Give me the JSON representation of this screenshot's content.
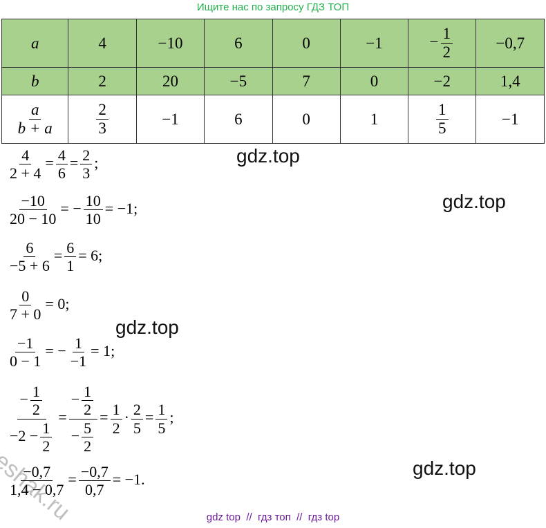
{
  "header": "Ищите нас по запросу ГДЗ ТОП",
  "table": {
    "rows": [
      [
        "a",
        "4",
        "−10",
        "6",
        "0",
        "−1",
        [
          "−",
          {
            "num": "1",
            "den": "2"
          }
        ],
        "−0,7"
      ],
      [
        "b",
        "2",
        "20",
        "−5",
        "7",
        "0",
        "−2",
        "1,4"
      ],
      [
        {
          "num": "a",
          "den": "b + a"
        },
        {
          "num": "2",
          "den": "3"
        },
        "−1",
        "6",
        "0",
        "1",
        {
          "num": "1",
          "den": "5"
        },
        "−1"
      ]
    ]
  },
  "solution": {
    "lines": [
      [
        {
          "num": "4",
          "den": "2 + 4"
        },
        "=",
        {
          "num": "4",
          "den": "6"
        },
        "=",
        {
          "num": "2",
          "den": "3"
        },
        ";"
      ],
      [
        {
          "num": "−10",
          "den": "20 − 10"
        },
        "= −",
        {
          "num": "10",
          "den": "10"
        },
        "= −1;"
      ],
      [
        {
          "num": "6",
          "den": "−5 + 6"
        },
        "=",
        {
          "num": "6",
          "den": "1"
        },
        "= 6;"
      ],
      [
        {
          "num": "0",
          "den": "7 + 0"
        },
        "= 0;"
      ],
      [
        {
          "num": "−1",
          "den": "0 − 1"
        },
        "= −",
        {
          "num": "1",
          "den": "−1"
        },
        "= 1;"
      ],
      [
        {
          "num": [
            "−",
            {
              "num": "1",
              "den": "2"
            }
          ],
          "den": [
            "−2 −",
            {
              "num": "1",
              "den": "2"
            }
          ]
        },
        "=",
        {
          "num": [
            "−",
            {
              "num": "1",
              "den": "2"
            }
          ],
          "den": [
            "−",
            {
              "num": "5",
              "den": "2"
            }
          ]
        },
        "=",
        {
          "num": "1",
          "den": "2"
        },
        "·",
        {
          "num": "2",
          "den": "5"
        },
        "=",
        {
          "num": "1",
          "den": "5"
        },
        ";"
      ],
      [
        {
          "num": "−0,7",
          "den": "1,4 − 0,7"
        },
        "=",
        {
          "num": "−0,7",
          "den": "0,7"
        },
        "= −1."
      ]
    ]
  },
  "watermarks": [
    "gdz.top",
    "gdz.top",
    "gdz.top",
    "gdz.top"
  ],
  "stamp": "reshak.ru",
  "footer": "gdz top  //  гдз топ  //  гдз top"
}
